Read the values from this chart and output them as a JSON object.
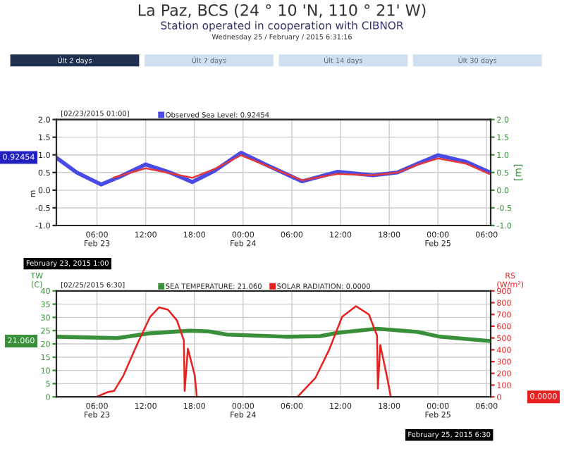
{
  "chart_data": [
    {
      "type": "line",
      "ylabel": "m",
      "y2label": "[m]",
      "annotations": [
        "La Paz, BCS (24 ° 10 'N, 110 ° 21' W)",
        "Station operated in cooperation with CIBNOR",
        "Wednesday 25 / February / 2015 6:31:16",
        "Últ 2 days",
        "Últ 7 days",
        "Últ 14 days",
        "Últ 30 days",
        "[02/23/2015 01:00]",
        {
          "text": "0.92454",
          "x": "2015-02-23T01:00",
          "y": 0.92454
        },
        "February 23, 2015 1:00"
      ],
      "series": [
        {
          "name": "Observed Sea Level: 0.92454",
          "color": "#4a4ae6",
          "x": [
            "2015-02-23T01:00",
            "2015-02-23T03:30",
            "2015-02-23T06:30",
            "2015-02-23T09:00",
            "2015-02-23T12:00",
            "2015-02-23T15:00",
            "2015-02-23T17:45",
            "2015-02-23T20:30",
            "2015-02-23T23:45",
            "2015-02-24T03:00",
            "2015-02-24T07:15",
            "2015-02-24T11:40",
            "2015-02-24T16:00",
            "2015-02-24T19:00",
            "2015-02-24T21:30",
            "2015-02-25T00:00",
            "2015-02-25T03:30",
            "2015-02-25T06:20"
          ],
          "values": [
            0.92,
            0.5,
            0.16,
            0.4,
            0.73,
            0.5,
            0.23,
            0.55,
            1.06,
            0.7,
            0.25,
            0.52,
            0.42,
            0.5,
            0.75,
            0.99,
            0.8,
            0.51
          ]
        },
        {
          "color": "#e23a3a",
          "x": [
            "2015-02-23T08:00",
            "2015-02-23T12:00",
            "2015-02-23T15:00",
            "2015-02-23T17:45",
            "2015-02-23T20:30",
            "2015-02-23T23:45",
            "2015-02-24T03:00",
            "2015-02-24T07:15",
            "2015-02-24T11:40",
            "2015-02-24T16:00",
            "2015-02-24T19:00",
            "2015-02-24T21:30",
            "2015-02-25T00:00",
            "2015-02-25T03:30",
            "2015-02-25T06:20"
          ],
          "values": [
            0.35,
            0.62,
            0.48,
            0.35,
            0.6,
            0.99,
            0.68,
            0.28,
            0.46,
            0.42,
            0.5,
            0.72,
            0.9,
            0.75,
            0.46
          ]
        }
      ],
      "xlim": [
        "2015-02-23T01:00",
        "2015-02-25T06:30"
      ],
      "xticks": [
        {
          "value": "2015-02-23T06:00",
          "label": "06:00\nFeb 23"
        },
        {
          "value": "2015-02-23T12:00",
          "label": "12:00"
        },
        {
          "value": "2015-02-23T18:00",
          "label": "18:00"
        },
        {
          "value": "2015-02-24T00:00",
          "label": "00:00\nFeb 24"
        },
        {
          "value": "2015-02-24T06:00",
          "label": "06:00"
        },
        {
          "value": "2015-02-24T12:00",
          "label": "12:00"
        },
        {
          "value": "2015-02-24T18:00",
          "label": "18:00"
        },
        {
          "value": "2015-02-25T00:00",
          "label": "00:00\nFeb 25"
        },
        {
          "value": "2015-02-25T06:00",
          "label": "06:00"
        }
      ],
      "ylim": [
        -1.0,
        2.0
      ],
      "yticks": [
        {
          "value": -1.0,
          "label": "-1.0"
        },
        {
          "value": -0.5,
          "label": "-0.5"
        },
        {
          "value": 0.0,
          "label": "0.0"
        },
        {
          "value": 0.5,
          "label": "0.5"
        },
        {
          "value": 1.0,
          "label": "1.0"
        },
        {
          "value": 1.5,
          "label": "1.5"
        },
        {
          "value": 2.0,
          "label": "2.0"
        }
      ],
      "y2lim": [
        -1.0,
        2.0
      ],
      "y2ticks": [
        {
          "value": -1.0,
          "label": "-1.0"
        },
        {
          "value": -0.5,
          "label": "-0.5"
        },
        {
          "value": 0.0,
          "label": "0.0"
        },
        {
          "value": 0.5,
          "label": "0.5"
        },
        {
          "value": 1.0,
          "label": "1.0"
        },
        {
          "value": 1.5,
          "label": "1.5"
        },
        {
          "value": 2.0,
          "label": "2.0"
        }
      ],
      "grid": true,
      "legend": "top left"
    },
    {
      "type": "line",
      "ylabel": "TW\n(C)",
      "y2label": "RS\n(W/m²)",
      "annotations": [
        "[02/25/2015 6:30]",
        {
          "text": "21.060",
          "x": "2015-02-23T01:00",
          "y": 21.06
        },
        "0.0000",
        "February 25, 2015 6:30"
      ],
      "series": [
        {
          "name": "SEA TEMPERATURE: 21.060",
          "color": "#3a8f3a",
          "x": [
            "2015-02-23T01:00",
            "2015-02-23T08:30",
            "2015-02-23T12:30",
            "2015-02-23T17:30",
            "2015-02-23T19:45",
            "2015-02-23T22:00",
            "2015-02-24T05:10",
            "2015-02-24T09:30",
            "2015-02-24T11:40",
            "2015-02-24T16:30",
            "2015-02-24T21:30",
            "2015-02-25T00:15",
            "2015-02-25T06:30"
          ],
          "values": [
            22.7,
            22.2,
            24,
            25,
            24.7,
            23.5,
            22.7,
            22.9,
            24.2,
            25.7,
            24.5,
            22.7,
            21.06
          ]
        },
        {
          "name": "SOLAR RADIATION: 0.0000",
          "color": "#e82020",
          "axis": "y2",
          "x": [
            "2015-02-23T01:00",
            "2015-02-23T05:57",
            "2015-02-23T07:18",
            "2015-02-23T08:06",
            "2015-02-23T09:15",
            "2015-02-23T10:54",
            "2015-02-23T12:33",
            "2015-02-23T13:39",
            "2015-02-23T14:45",
            "2015-02-23T15:51",
            "2015-02-23T16:42",
            "2015-02-23T16:48",
            "2015-02-23T17:12",
            "2015-02-23T18:03",
            "2015-02-23T18:18",
            "2015-02-24T06:42",
            "2015-02-24T08:54",
            "2015-02-24T10:36",
            "2015-02-24T12:12",
            "2015-02-24T13:54",
            "2015-02-24T15:30",
            "2015-02-24T16:30",
            "2015-02-24T16:36",
            "2015-02-24T16:54",
            "2015-02-24T17:42",
            "2015-02-24T18:12",
            "2015-02-25T06:30"
          ],
          "values": [
            0,
            0,
            40,
            50,
            180,
            440,
            680,
            760,
            740,
            650,
            480,
            50,
            410,
            180,
            0,
            0,
            160,
            400,
            680,
            770,
            700,
            520,
            70,
            440,
            180,
            0,
            0
          ]
        }
      ],
      "xlim": [
        "2015-02-23T01:00",
        "2015-02-25T06:30"
      ],
      "xticks": [
        {
          "value": "2015-02-23T06:00",
          "label": "06:00\nFeb 23"
        },
        {
          "value": "2015-02-23T12:00",
          "label": "12:00"
        },
        {
          "value": "2015-02-23T18:00",
          "label": "18:00"
        },
        {
          "value": "2015-02-24T00:00",
          "label": "00:00\nFeb 24"
        },
        {
          "value": "2015-02-24T06:00",
          "label": "06:00"
        },
        {
          "value": "2015-02-24T12:00",
          "label": "12:00"
        },
        {
          "value": "2015-02-24T18:00",
          "label": "18:00"
        },
        {
          "value": "2015-02-25T00:00",
          "label": "00:00\nFeb 25"
        },
        {
          "value": "2015-02-25T06:00",
          "label": "06:00"
        }
      ],
      "ylim": [
        0,
        40
      ],
      "yticks": [
        0,
        5,
        10,
        15,
        20,
        25,
        30,
        35,
        40
      ],
      "y2lim": [
        0,
        900
      ],
      "y2ticks": [
        0,
        100,
        200,
        300,
        400,
        500,
        600,
        700,
        800,
        900
      ],
      "grid": true,
      "legend": "top left"
    }
  ]
}
